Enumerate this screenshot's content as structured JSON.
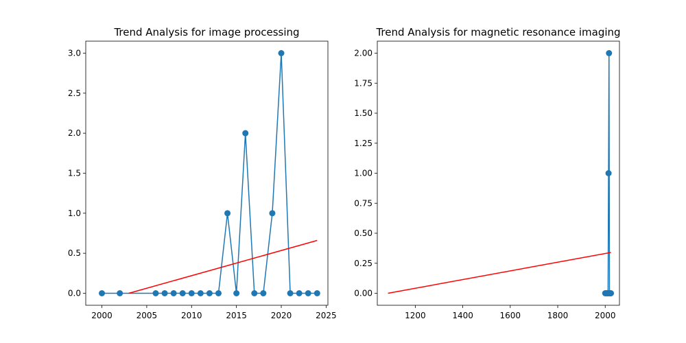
{
  "chart_data": [
    {
      "type": "line",
      "title": "Trend Analysis for image processing",
      "xlabel": "",
      "ylabel": "",
      "xlim": [
        1998.2,
        2025.2
      ],
      "ylim": [
        -0.15,
        3.15
      ],
      "xticks": [
        2000,
        2005,
        2010,
        2015,
        2020,
        2025
      ],
      "xtick_labels": [
        "2000",
        "2005",
        "2010",
        "2015",
        "2020",
        "2025"
      ],
      "yticks": [
        0.0,
        0.5,
        1.0,
        1.5,
        2.0,
        2.5,
        3.0
      ],
      "ytick_labels": [
        "0.0",
        "0.5",
        "1.0",
        "1.5",
        "2.0",
        "2.5",
        "3.0"
      ],
      "grid": false,
      "series": [
        {
          "kind": "line-markers",
          "color": "#1f77b4",
          "x": [
            2000,
            2002,
            2006,
            2007,
            2008,
            2009,
            2010,
            2011,
            2012,
            2013,
            2014,
            2015,
            2016,
            2017,
            2018,
            2019,
            2020,
            2021,
            2022,
            2023,
            2024
          ],
          "y": [
            0,
            0,
            0,
            0,
            0,
            0,
            0,
            0,
            0,
            0,
            1,
            0,
            2,
            0,
            0,
            1,
            3,
            0,
            0,
            0,
            0
          ]
        },
        {
          "kind": "trend-line",
          "color": "#ff0000",
          "x": [
            2003,
            2024
          ],
          "y": [
            0.0,
            0.66
          ]
        }
      ]
    },
    {
      "type": "line",
      "title": "Trend Analysis for magnetic resonance imaging",
      "xlabel": "",
      "ylabel": "",
      "xlim": [
        1040,
        2060
      ],
      "ylim": [
        -0.1,
        2.1
      ],
      "xticks": [
        1200,
        1400,
        1600,
        1800,
        2000
      ],
      "xtick_labels": [
        "1200",
        "1400",
        "1600",
        "1800",
        "2000"
      ],
      "yticks": [
        0.0,
        0.25,
        0.5,
        0.75,
        1.0,
        1.25,
        1.5,
        1.75,
        2.0
      ],
      "ytick_labels": [
        "0.00",
        "0.25",
        "0.50",
        "0.75",
        "1.00",
        "1.25",
        "1.50",
        "1.75",
        "2.00"
      ],
      "grid": false,
      "series": [
        {
          "kind": "line-markers",
          "color": "#1f77b4",
          "x": [
            2000,
            2004,
            2008,
            2010,
            2012,
            2014,
            2016,
            2018,
            2020,
            2022,
            2024
          ],
          "y": [
            0,
            0,
            0,
            0,
            0,
            1,
            2,
            0,
            0,
            0,
            0
          ]
        },
        {
          "kind": "trend-line",
          "color": "#ff0000",
          "x": [
            1085,
            2024
          ],
          "y": [
            0.0,
            0.34
          ]
        }
      ]
    }
  ]
}
